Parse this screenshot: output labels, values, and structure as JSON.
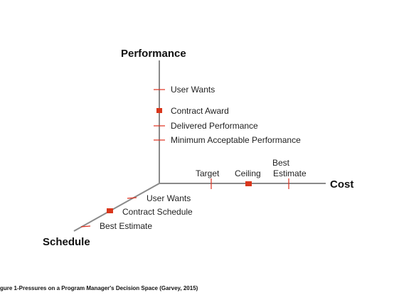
{
  "top_fragment": "",
  "axes": {
    "performance": "Performance",
    "cost": "Cost",
    "schedule": "Schedule"
  },
  "performance_labels": {
    "user_wants": "User Wants",
    "contract_award": "Contract Award",
    "delivered": "Delivered Performance",
    "minimum": "Minimum Acceptable Performance"
  },
  "cost_labels": {
    "target": "Target",
    "ceiling": "Ceiling",
    "best_line1": "Best",
    "best_line2": "Estimate"
  },
  "schedule_labels": {
    "user_wants": "User Wants",
    "contract_schedule": "Contract Schedule",
    "best_estimate": "Best Estimate"
  },
  "caption": "gure 1-Pressures on a Program Manager's Decision Space (Garvey, 2015)",
  "colors": {
    "axis": "#8a8a8a",
    "tick": "#e0301e",
    "marker": "#d9361b",
    "text": "#222222"
  }
}
